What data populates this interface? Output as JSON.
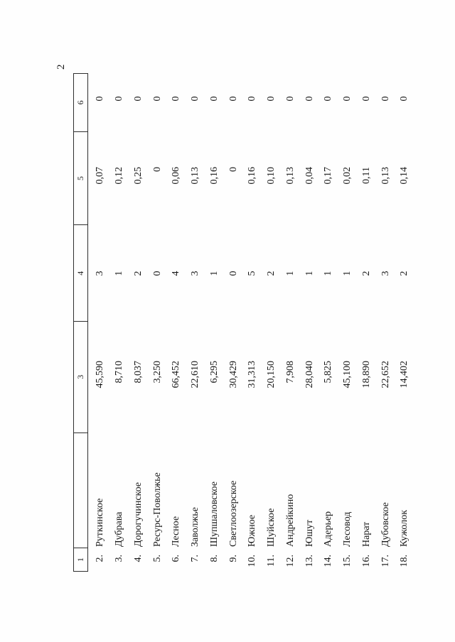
{
  "page": {
    "number": "2"
  },
  "table": {
    "header": [
      "1",
      "",
      "3",
      "4",
      "5",
      "6"
    ],
    "rows": [
      {
        "num": "2.",
        "name": "Руткинское",
        "c3": "45,590",
        "c4": "3",
        "c5": "0,07",
        "c6": "0"
      },
      {
        "num": "3.",
        "name": "Дубрава",
        "c3": "8,710",
        "c4": "1",
        "c5": "0,12",
        "c6": "0"
      },
      {
        "num": "4.",
        "name": "Дорогучинское",
        "c3": "8,037",
        "c4": "2",
        "c5": "0,25",
        "c6": "0"
      },
      {
        "num": "5.",
        "name": "Ресурс-Поволжье",
        "c3": "3,250",
        "c4": "0",
        "c5": "0",
        "c6": "0"
      },
      {
        "num": "6.",
        "name": "Лесное",
        "c3": "66,452",
        "c4": "4",
        "c5": "0,06",
        "c6": "0"
      },
      {
        "num": "7.",
        "name": "Заволжье",
        "c3": "22,610",
        "c4": "3",
        "c5": "0,13",
        "c6": "0"
      },
      {
        "num": "8.",
        "name": "Шупшаловское",
        "c3": "6,295",
        "c4": "1",
        "c5": "0,16",
        "c6": "0"
      },
      {
        "num": "9.",
        "name": "Светлоозерское",
        "c3": "30,429",
        "c4": "0",
        "c5": "0",
        "c6": "0"
      },
      {
        "num": "10.",
        "name": "Южное",
        "c3": "31,313",
        "c4": "5",
        "c5": "0,16",
        "c6": "0"
      },
      {
        "num": "11.",
        "name": "Шуйское",
        "c3": "20,150",
        "c4": "2",
        "c5": "0,10",
        "c6": "0"
      },
      {
        "num": "12.",
        "name": "Андрейкино",
        "c3": "7,908",
        "c4": "1",
        "c5": "0,13",
        "c6": "0"
      },
      {
        "num": "13.",
        "name": "Юшут",
        "c3": "28,040",
        "c4": "1",
        "c5": "0,04",
        "c6": "0"
      },
      {
        "num": "14.",
        "name": "Адерьер",
        "c3": "5,825",
        "c4": "1",
        "c5": "0,17",
        "c6": "0"
      },
      {
        "num": "15.",
        "name": "Лесовод",
        "c3": "45,100",
        "c4": "1",
        "c5": "0,02",
        "c6": "0"
      },
      {
        "num": "16.",
        "name": "Нарат",
        "c3": "18,890",
        "c4": "2",
        "c5": "0,11",
        "c6": "0"
      },
      {
        "num": "17.",
        "name": "Дубовское",
        "c3": "22,652",
        "c4": "3",
        "c5": "0,13",
        "c6": "0"
      },
      {
        "num": "18.",
        "name": "Кужолок",
        "c3": "14,402",
        "c4": "2",
        "c5": "0,14",
        "c6": "0"
      }
    ]
  }
}
